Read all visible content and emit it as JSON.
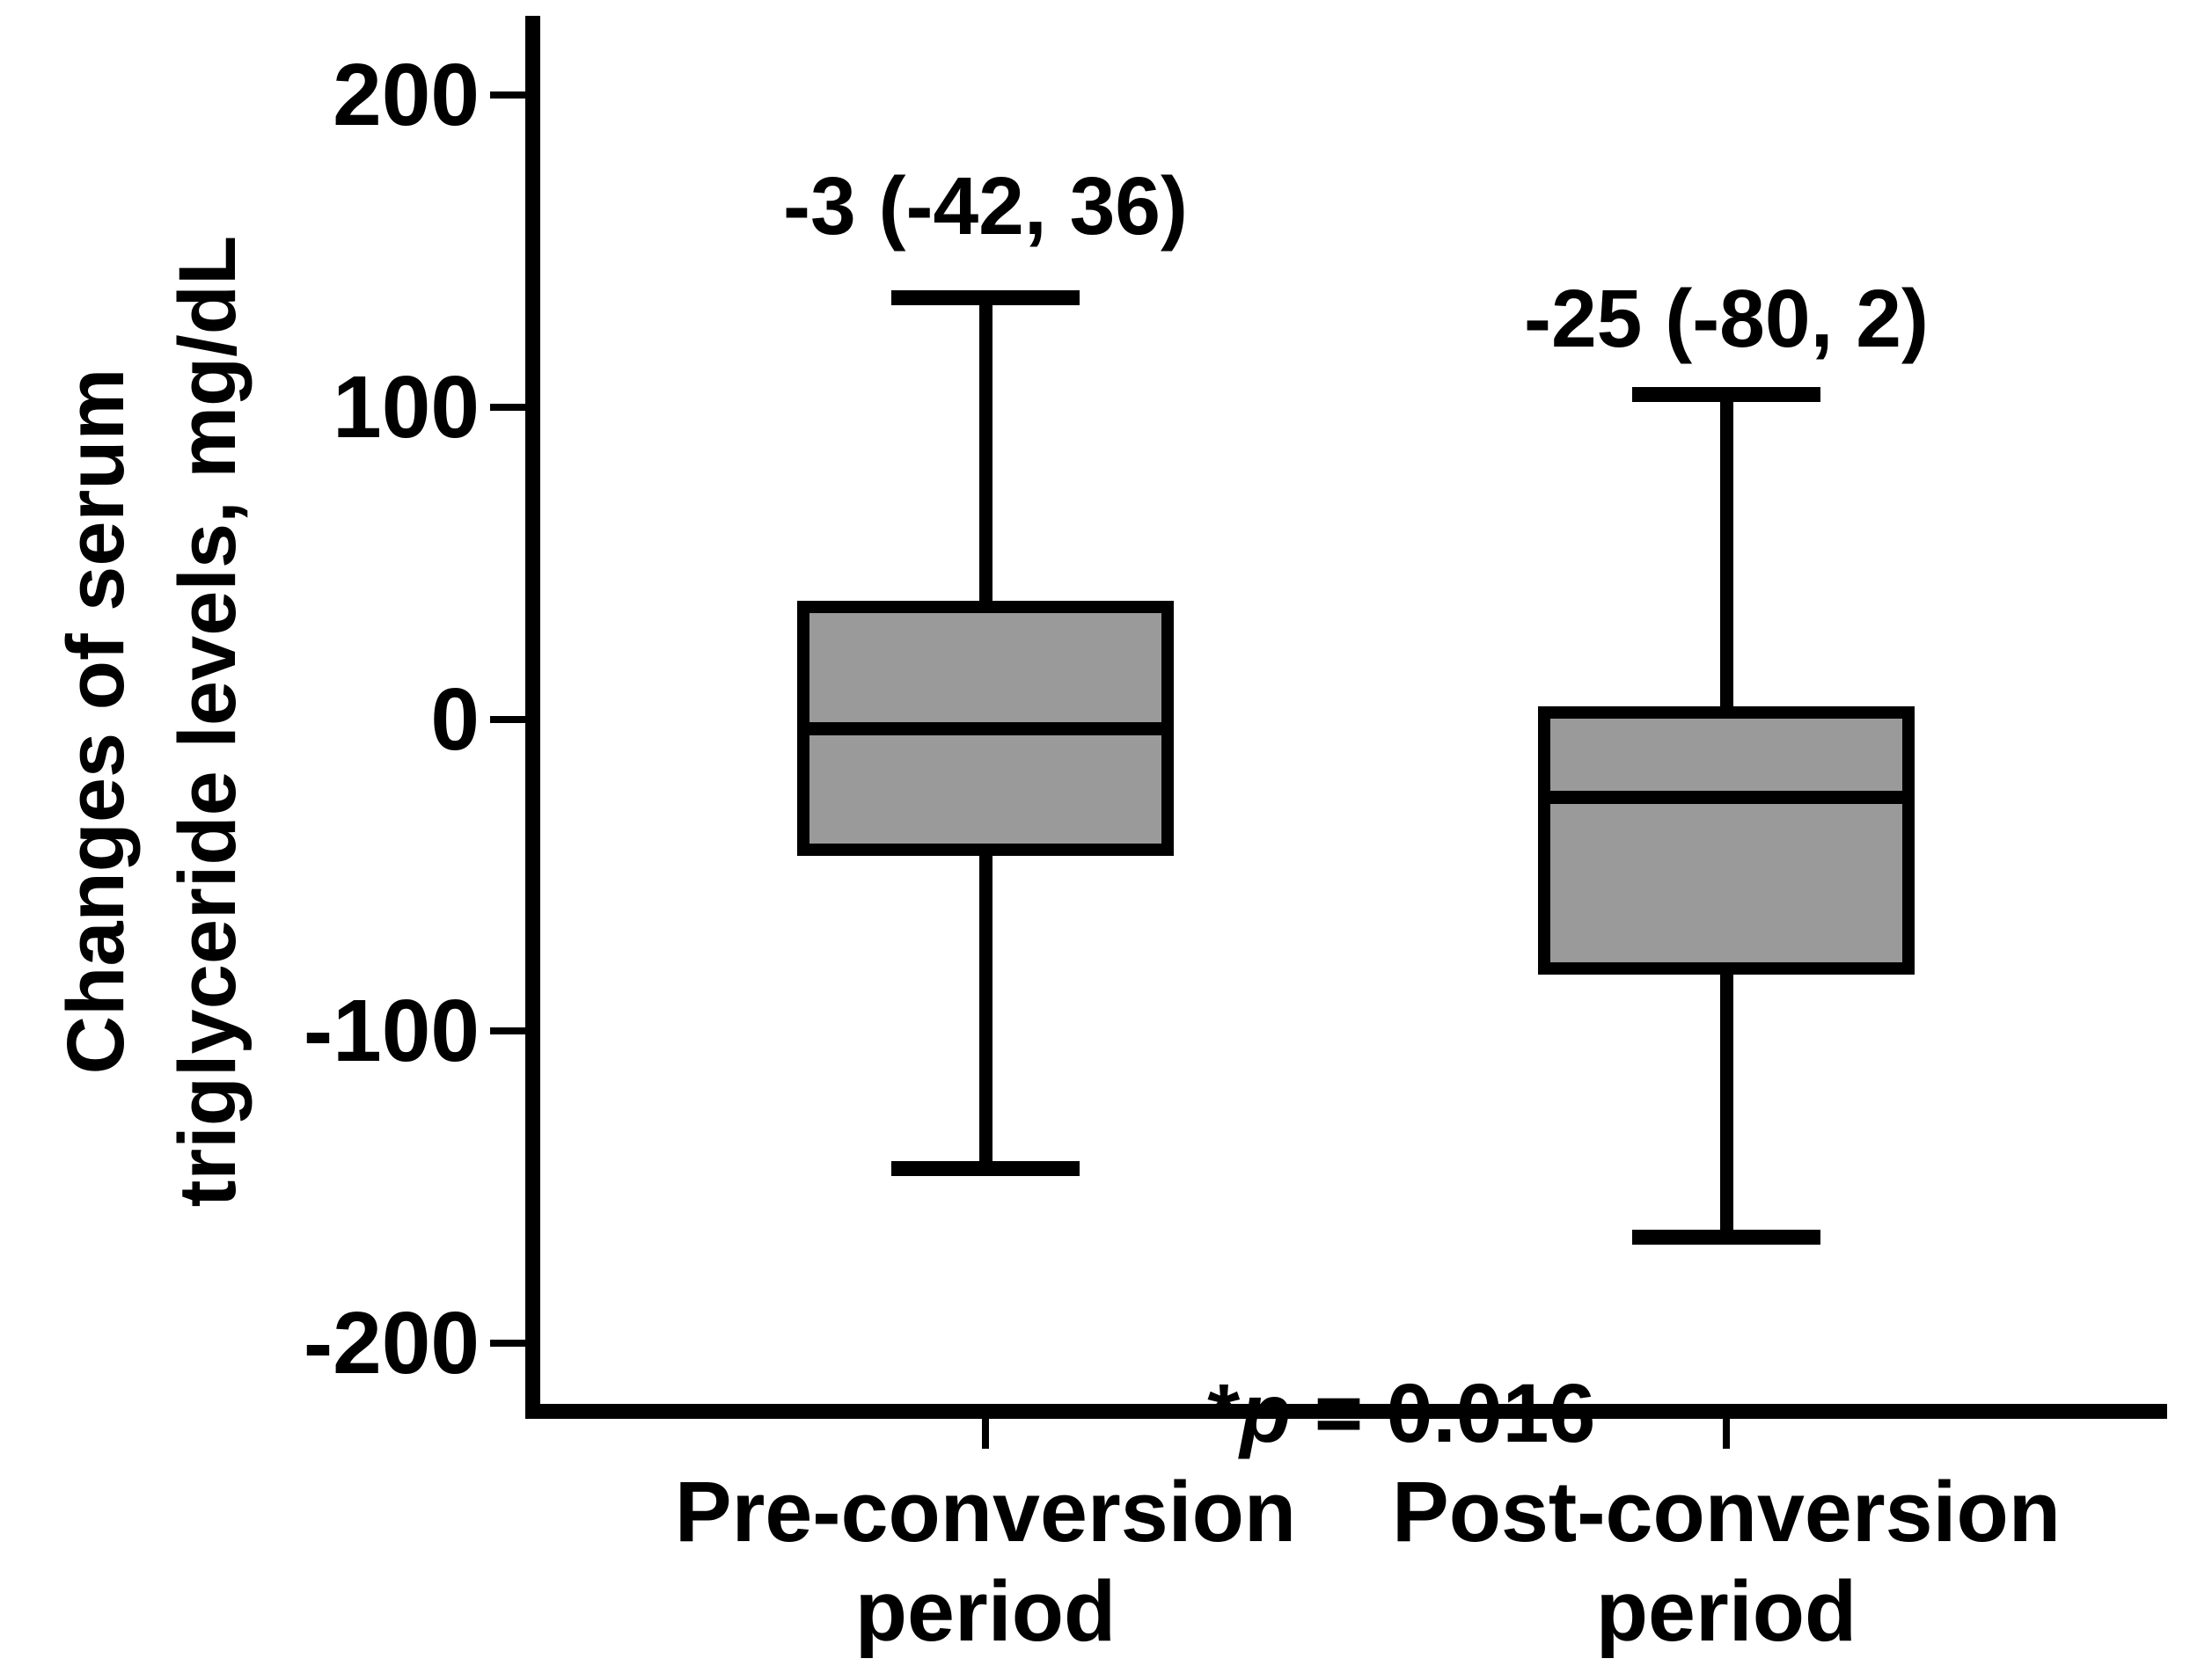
{
  "figure": {
    "p_annotation": {
      "star": "*",
      "p": "p",
      "rest": " = 0.016"
    }
  },
  "chart_data": {
    "type": "box",
    "title": "",
    "xlabel": "",
    "ylabel": "Changes of serum\ntriglyceride levels, mg/dL",
    "yticks": [
      200,
      100,
      0,
      -100,
      -200
    ],
    "ylim": [
      -225,
      225
    ],
    "grid": false,
    "legend": "none",
    "categories": [
      "Pre-conversion\nperiod",
      "Post-conversion\nperiod"
    ],
    "series": [
      {
        "name": "Pre-conversion period",
        "label": "-3 (-42, 36)",
        "median": -3,
        "q1": -42,
        "q3": 36,
        "whisker_low": -144,
        "whisker_high": 135
      },
      {
        "name": "Post-conversion period",
        "label": "-25 (-80, 2)",
        "median": -25,
        "q1": -80,
        "q3": 2,
        "whisker_low": -166,
        "whisker_high": 104
      }
    ],
    "significance": "*p = 0.016",
    "box_fill": "#9a9a9a",
    "line_color": "#000000",
    "background": "#ffffff"
  }
}
